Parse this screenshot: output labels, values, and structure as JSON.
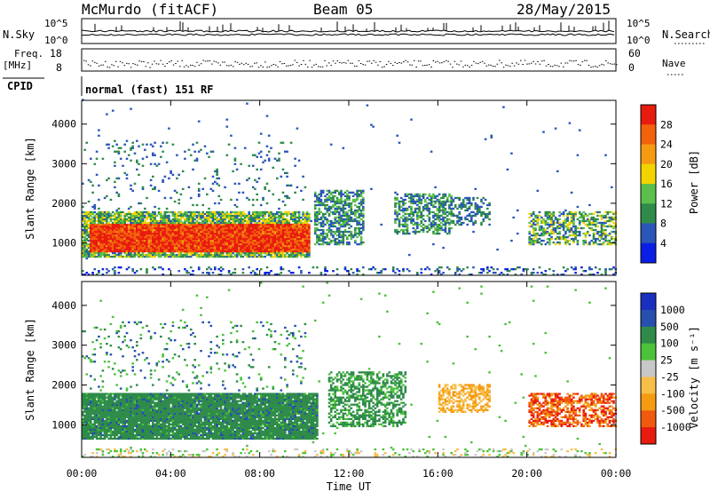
{
  "header": {
    "station": "McMurdo (fitACF)",
    "beam": "Beam 05",
    "date": "28/May/2015"
  },
  "strips": {
    "nsky_label": "N.Sky",
    "nsearch_label": "N.Search",
    "nsky_ticks": [
      "10^5",
      "10^0"
    ],
    "freq_label_1": "Freq.",
    "freq_label_2": "[MHz]",
    "freq_ticks": [
      "18",
      "8"
    ],
    "nave_label": "Nave",
    "nave_ticks": [
      "60",
      "0"
    ],
    "cpid_label": "CPID",
    "cpid_text": "normal (fast) 151 RF"
  },
  "colors": {
    "power": [
      "#0a1fe6",
      "#2a56b8",
      "#2f8b4a",
      "#5cbf4c",
      "#f2d400",
      "#f49b12",
      "#f2620c",
      "#e81b0f"
    ],
    "velocity": [
      "#e81b0f",
      "#ef5a0f",
      "#f49b12",
      "#f7be48",
      "#c8c8c8",
      "#4cc23a",
      "#2f8b4a",
      "#264fae",
      "#1a2fbf"
    ]
  },
  "chart_data": [
    {
      "type": "heatmap",
      "panel": "power",
      "ylabel": "Slant Range [km]",
      "ylim": [
        180,
        4600
      ],
      "yticks": [
        "1000",
        "2000",
        "3000",
        "4000"
      ],
      "colorbar_label": "Power [dB]",
      "colorbar_ticks": [
        "4",
        "8",
        "12",
        "16",
        "20",
        "24",
        "28"
      ],
      "xlim_hours": [
        0,
        24
      ],
      "regions": [
        {
          "t": [
            0.0,
            10.0
          ],
          "r": [
            600,
            1800
          ],
          "level": "strong (20-28 dB)"
        },
        {
          "t": [
            10.5,
            12.5
          ],
          "r": [
            900,
            2300
          ],
          "level": "moderate"
        },
        {
          "t": [
            14.0,
            16.5
          ],
          "r": [
            1200,
            2200
          ],
          "level": "moderate"
        },
        {
          "t": [
            16.5,
            18.3
          ],
          "r": [
            1300,
            2200
          ],
          "level": "weak"
        },
        {
          "t": [
            20.0,
            24.0
          ],
          "r": [
            900,
            1800
          ],
          "level": "moderate"
        }
      ]
    },
    {
      "type": "heatmap",
      "panel": "velocity",
      "ylabel": "Slant Range [km]",
      "ylim": [
        180,
        4600
      ],
      "yticks": [
        "1000",
        "2000",
        "3000",
        "4000"
      ],
      "colorbar_label": "Velocity [m s⁻¹]",
      "colorbar_ticks": [
        "1000",
        "500",
        "100",
        "25",
        "-25",
        "-100",
        "-500",
        "-1000"
      ],
      "xlabel": "Time UT",
      "xticks": [
        "00:00",
        "04:00",
        "08:00",
        "12:00",
        "16:00",
        "20:00",
        "00:00"
      ],
      "xlim_hours": [
        0,
        24
      ],
      "regions": [
        {
          "t": [
            0.0,
            10.5
          ],
          "r": [
            600,
            1800
          ],
          "velocity": "positive (100-500 m/s)"
        },
        {
          "t": [
            11.0,
            14.5
          ],
          "r": [
            900,
            2300
          ],
          "velocity": "positive (100-500 m/s)"
        },
        {
          "t": [
            16.0,
            18.3
          ],
          "r": [
            1300,
            2000
          ],
          "velocity": "negative (-100 to -500 m/s)"
        },
        {
          "t": [
            20.0,
            24.0
          ],
          "r": [
            900,
            1800
          ],
          "velocity": "negative (-100 to -500 m/s)"
        }
      ]
    }
  ]
}
